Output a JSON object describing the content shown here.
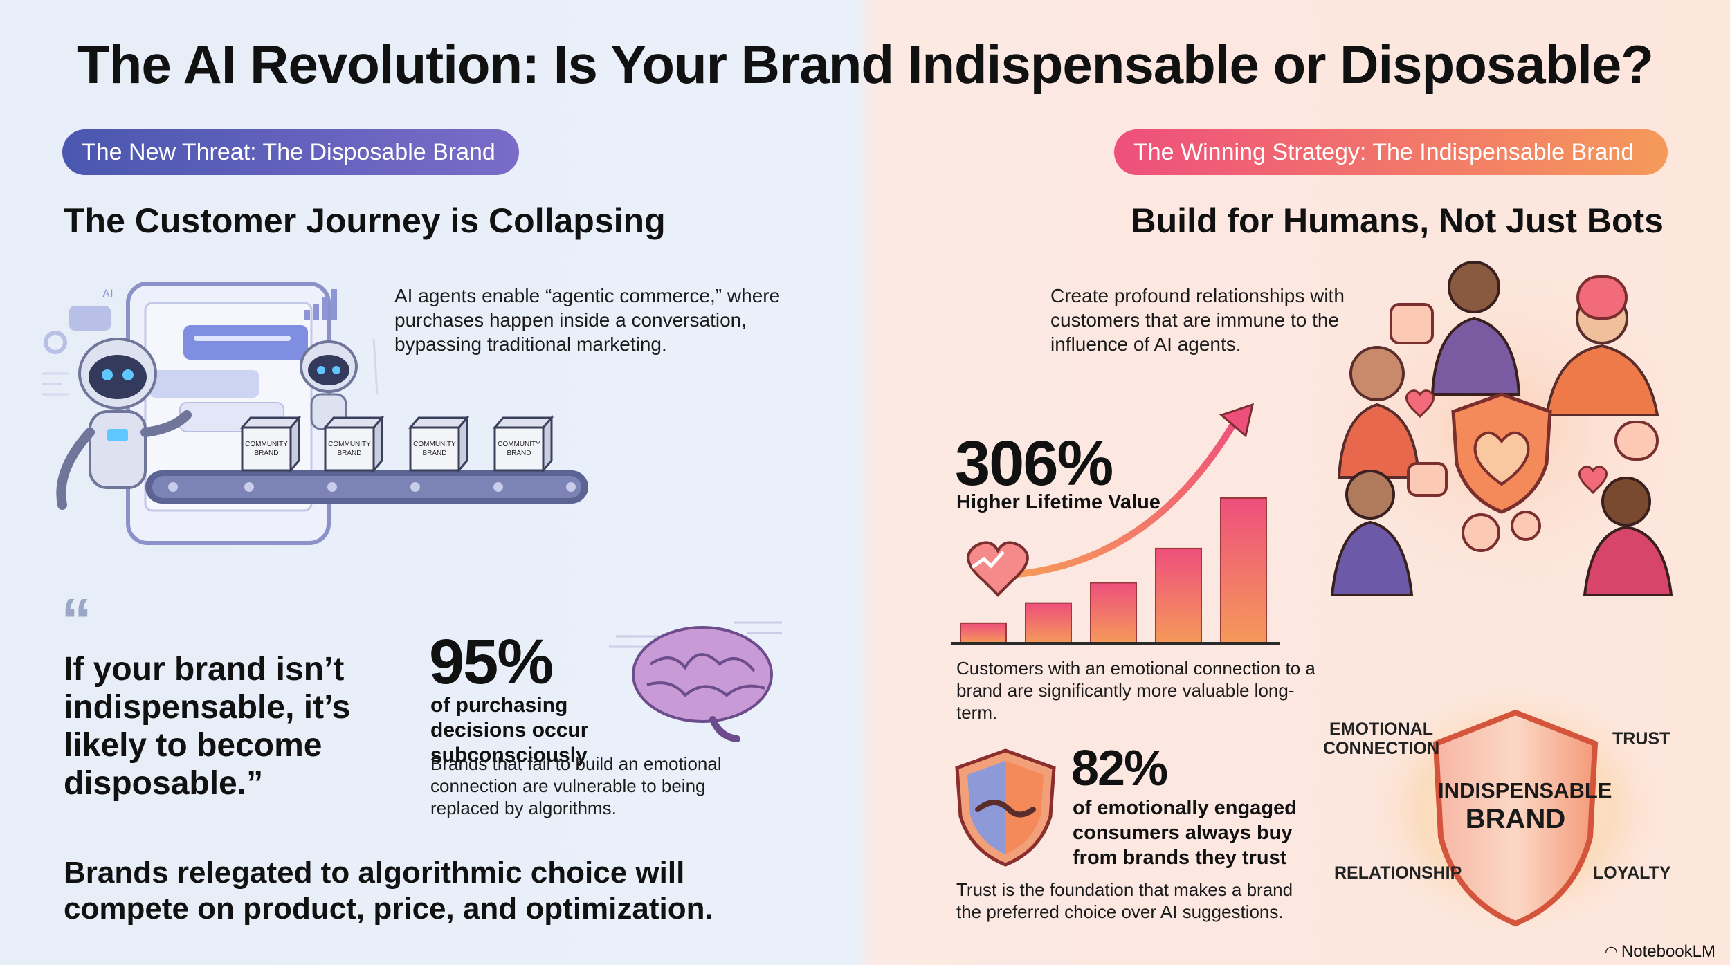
{
  "header": {
    "title": "The AI Revolution: Is Your Brand Indispensable or Disposable?"
  },
  "left": {
    "pill": "The New Threat: The Disposable Brand",
    "heading": "The Customer Journey is Collapsing",
    "intro": "AI agents enable “agentic commerce,” where purchases happen inside a conversation, bypassing traditional marketing.",
    "illustration": {
      "ai_label": "AI",
      "box_label_line1": "COMMUNITY",
      "box_label_line2": "BRAND",
      "colors": {
        "phone": "#8b92c9",
        "bubble": "#7f8ee0",
        "belt": "#5b6493"
      }
    },
    "quote_mark": "“",
    "quote": "If your brand isn’t indispensable, it’s likely to become disposable.”",
    "stat": {
      "value": "95%",
      "label": "of purchasing decisions occur subconsciously",
      "desc": "Brands that fail to build an emotional connection are vulnerable to being replaced by algorithms.",
      "icon": "brain-icon"
    },
    "bottom": "Brands relegated to algorithmic choice will compete on product, price, and optimization."
  },
  "right": {
    "pill": "The Winning Strategy: The Indispensable Brand",
    "heading": "Build for Humans, Not Just Bots",
    "intro": "Create profound relationships with customers that are immune to the influence of AI agents.",
    "stat1": {
      "value": "306%",
      "label": "Higher Lifetime Value",
      "desc": "Customers with an emotional connection to a brand are significantly more valuable long-term."
    },
    "growth_bars": [
      1,
      2,
      3,
      4.7,
      7.2
    ],
    "stat2": {
      "value": "82%",
      "label": "of emotionally engaged consumers always buy from brands they trust",
      "desc": "Trust is the foundation that makes a brand the preferred choice over AI suggestions.",
      "icon": "handshake-shield-icon"
    },
    "shield": {
      "title_line1": "INDISPENSABLE",
      "title_line2": "BRAND",
      "emotional_line1": "EMOTIONAL",
      "emotional_line2": "CONNECTION",
      "trust": "TRUST",
      "relationship": "RELATIONSHIP",
      "loyalty": "LOYALTY"
    },
    "colors": {
      "accent": "#ee4f7c",
      "accent2": "#f59a5a"
    }
  },
  "footer": {
    "brand": "NotebookLM"
  }
}
